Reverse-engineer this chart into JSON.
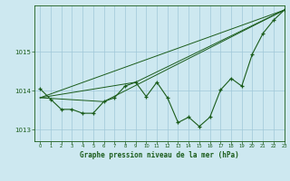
{
  "title": "Graphe pression niveau de la mer (hPa)",
  "background_color": "#cde8f0",
  "plot_bg_color": "#cde8f0",
  "grid_color": "#a0c8d8",
  "line_color": "#1a5c1a",
  "xlim": [
    -0.5,
    23
  ],
  "ylim": [
    1012.7,
    1016.2
  ],
  "yticks": [
    1013,
    1014,
    1015
  ],
  "xticks": [
    0,
    1,
    2,
    3,
    4,
    5,
    6,
    7,
    8,
    9,
    10,
    11,
    12,
    13,
    14,
    15,
    16,
    17,
    18,
    19,
    20,
    21,
    22,
    23
  ],
  "series1": {
    "x": [
      0,
      1,
      2,
      3,
      4,
      5,
      6,
      7,
      8,
      9,
      10,
      11,
      12,
      13,
      14,
      15,
      16,
      17,
      18,
      19,
      20,
      21,
      22,
      23
    ],
    "y": [
      1014.05,
      1013.78,
      1013.52,
      1013.52,
      1013.42,
      1013.42,
      1013.72,
      1013.82,
      1014.12,
      1014.22,
      1013.85,
      1014.22,
      1013.82,
      1013.18,
      1013.32,
      1013.08,
      1013.32,
      1014.02,
      1014.32,
      1014.12,
      1014.95,
      1015.48,
      1015.82,
      1016.08
    ]
  },
  "series2": {
    "x": [
      0,
      23
    ],
    "y": [
      1013.82,
      1016.08
    ]
  },
  "series3": {
    "x": [
      0,
      6,
      23
    ],
    "y": [
      1013.82,
      1013.72,
      1016.08
    ]
  },
  "series4": {
    "x": [
      0,
      9,
      23
    ],
    "y": [
      1013.82,
      1014.22,
      1016.08
    ]
  }
}
